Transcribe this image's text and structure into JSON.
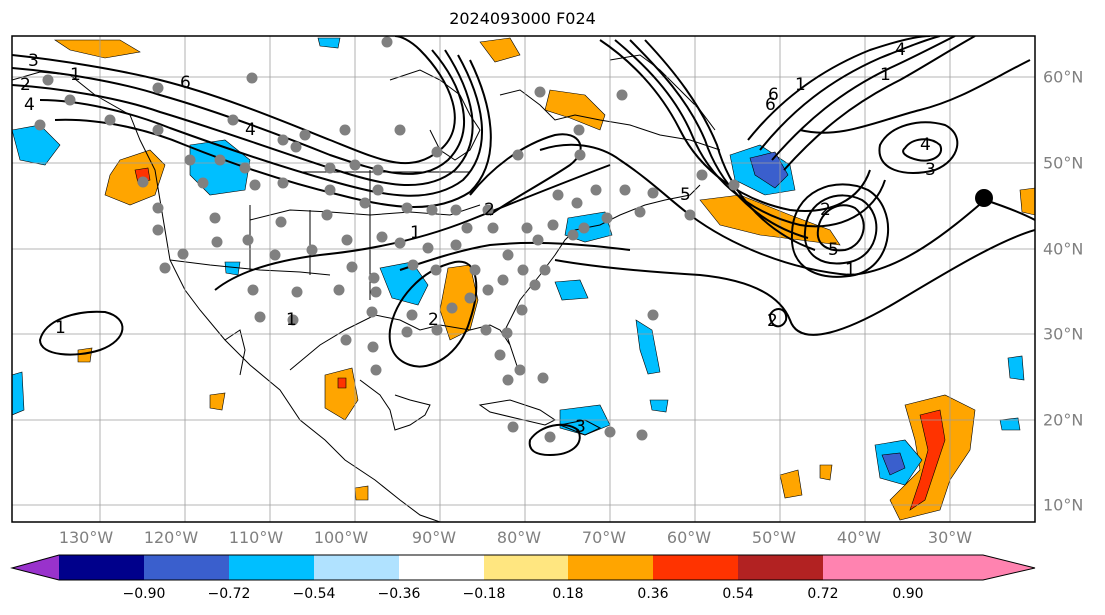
{
  "title": "2024093000 F024",
  "longitude_labels": [
    "130°W",
    "120°W",
    "110°W",
    "100°W",
    "90°W",
    "80°W",
    "70°W",
    "60°W",
    "50°W",
    "40°W",
    "30°W"
  ],
  "latitude_labels": [
    "60°N",
    "50°N",
    "40°N",
    "30°N",
    "20°N",
    "10°N"
  ],
  "colorbar": {
    "tick_labels": [
      "−0.90",
      "−0.72",
      "−0.54",
      "−0.36",
      "−0.18",
      "0.18",
      "0.36",
      "0.54",
      "0.72",
      "0.90"
    ],
    "colors": [
      "#9932cc",
      "#00008b",
      "#3a5fcd",
      "#00bfff",
      "#b0e2ff",
      "#ffffff",
      "#ffe680",
      "#ffa500",
      "#ff3300",
      "#b22222",
      "#ff83b0"
    ]
  },
  "contour_labels": [
    "3",
    "2",
    "4",
    "1",
    "6",
    "6",
    "1",
    "4",
    "1",
    "3",
    "5",
    "1",
    "2",
    "4",
    "5",
    "4",
    "1",
    "2",
    "3",
    "6",
    "2",
    "1",
    "2",
    "1"
  ],
  "field_colors": {
    "positive": "#ffa500",
    "positive_strong": "#ff3300",
    "negative": "#00bfff",
    "negative_strong": "#3a5fcd"
  }
}
